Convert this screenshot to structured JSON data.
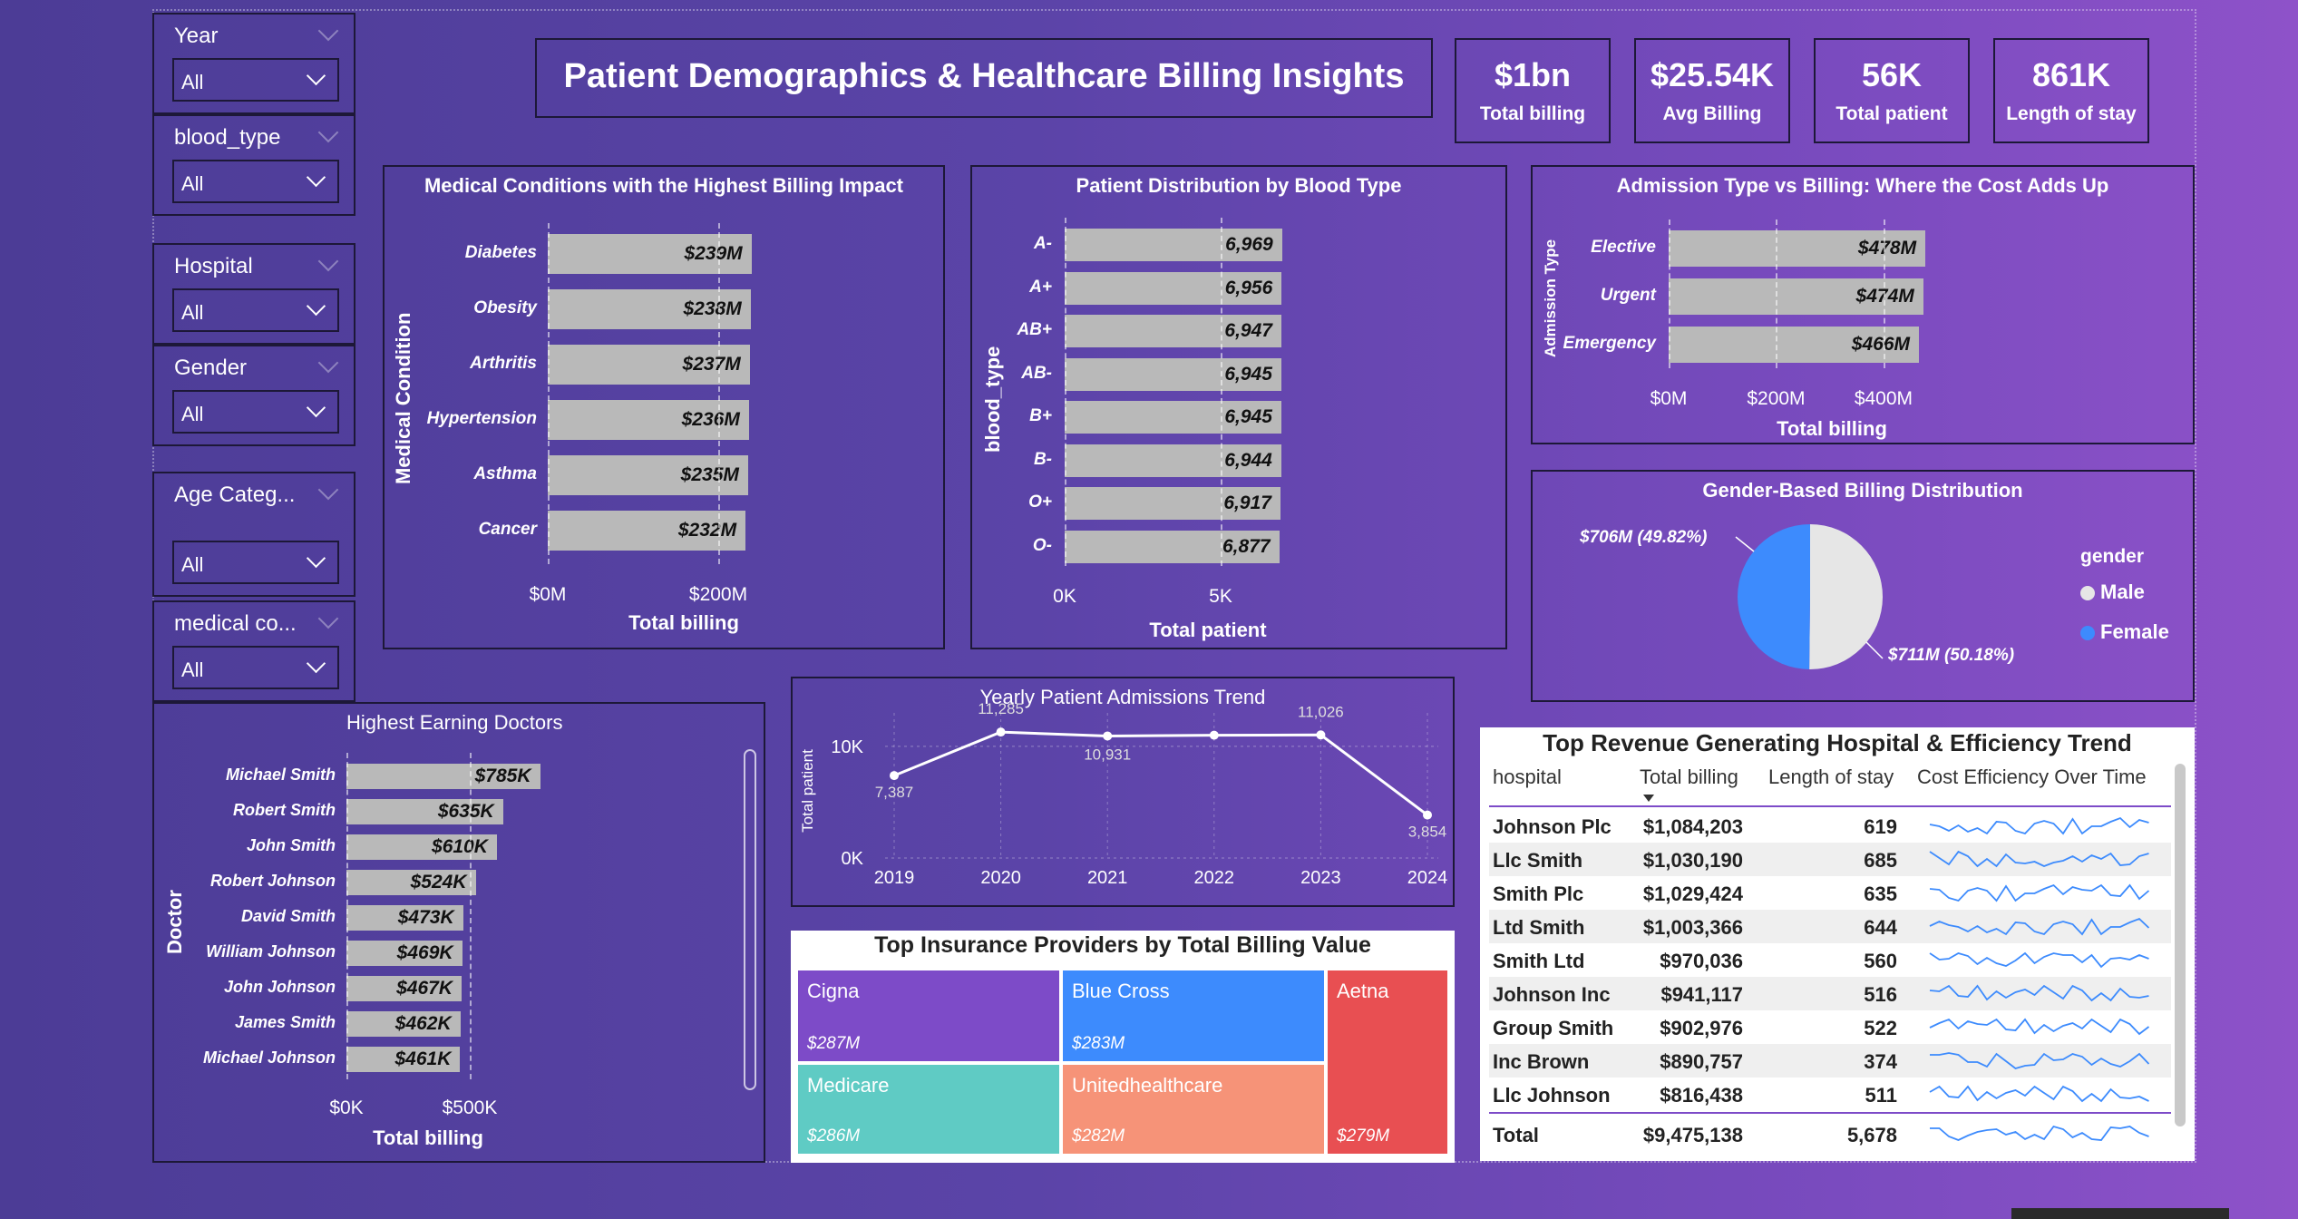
{
  "report_title": "Patient Demographics & Healthcare Billing Insights",
  "slicers": [
    {
      "label": "Year",
      "value": "All"
    },
    {
      "label": "blood_type",
      "value": "All"
    },
    {
      "label": "Hospital",
      "value": "All"
    },
    {
      "label": "Gender",
      "value": "All"
    },
    {
      "label": "Age Categ...",
      "value": "All"
    },
    {
      "label": "medical co...",
      "value": "All"
    }
  ],
  "kpis": [
    {
      "value": "$1bn",
      "label": "Total billing"
    },
    {
      "value": "$25.54K",
      "label": "Avg Billing"
    },
    {
      "value": "56K",
      "label": "Total patient"
    },
    {
      "value": "861K",
      "label": "Length of stay"
    }
  ],
  "colors": {
    "bar": "#b9b9b9",
    "female": "#3d8bfd",
    "male": "#e6e6e6",
    "cigna": "#7d4bc8",
    "blue_cross": "#3d8bfd",
    "aetna": "#e84f52",
    "medicare": "#5fcbc4",
    "unitedhealthcare": "#f69378"
  },
  "chart_data": [
    {
      "type": "bar",
      "orientation": "horizontal",
      "title": "Medical Conditions with the Highest Billing Impact",
      "ylabel": "Medical Condition",
      "xlabel": "Total billing",
      "categories": [
        "Diabetes",
        "Obesity",
        "Arthritis",
        "Hypertension",
        "Asthma",
        "Cancer"
      ],
      "values": [
        239,
        238,
        237,
        236,
        235,
        232
      ],
      "value_labels": [
        "$239M",
        "$238M",
        "$237M",
        "$236M",
        "$235M",
        "$232M"
      ],
      "xticks": [
        "$0M",
        "$200M"
      ],
      "xlim": [
        0,
        250
      ]
    },
    {
      "type": "bar",
      "orientation": "horizontal",
      "title": "Patient Distribution by Blood Type",
      "ylabel": "blood_type",
      "xlabel": "Total patient",
      "categories": [
        "A-",
        "A+",
        "AB+",
        "AB-",
        "B+",
        "B-",
        "O+",
        "O-"
      ],
      "values": [
        6969,
        6956,
        6947,
        6945,
        6945,
        6944,
        6917,
        6877
      ],
      "value_labels": [
        "6,969",
        "6,956",
        "6,947",
        "6,945",
        "6,945",
        "6,944",
        "6,917",
        "6,877"
      ],
      "xticks": [
        "0K",
        "5K"
      ],
      "xlim": [
        0,
        7500
      ]
    },
    {
      "type": "bar",
      "orientation": "horizontal",
      "title": "Admission Type vs Billing: Where the Cost Adds Up",
      "ylabel": "Admission Type",
      "xlabel": "Total billing",
      "categories": [
        "Elective",
        "Urgent",
        "Emergency"
      ],
      "values": [
        478,
        474,
        466
      ],
      "value_labels": [
        "$478M",
        "$474M",
        "$466M"
      ],
      "xticks": [
        "$0M",
        "$200M",
        "$400M"
      ],
      "xlim": [
        0,
        520
      ]
    },
    {
      "type": "pie",
      "title": "Gender-Based Billing Distribution",
      "legend_title": "gender",
      "categories": [
        "Male",
        "Female"
      ],
      "values": [
        711,
        706
      ],
      "value_labels": [
        "$711M (50.18%)",
        "$706M (49.82%)"
      ]
    },
    {
      "type": "bar",
      "orientation": "horizontal",
      "title": "Highest Earning Doctors",
      "ylabel": "Doctor",
      "xlabel": "Total billing",
      "categories": [
        "Michael Smith",
        "Robert Smith",
        "John Smith",
        "Robert Johnson",
        "David Smith",
        "William Johnson",
        "John Johnson",
        "James Smith",
        "Michael Johnson"
      ],
      "values": [
        785,
        635,
        610,
        524,
        473,
        469,
        467,
        462,
        461
      ],
      "value_labels": [
        "$785K",
        "$635K",
        "$610K",
        "$524K",
        "$473K",
        "$469K",
        "$467K",
        "$462K",
        "$461K"
      ],
      "xticks": [
        "$0K",
        "$500K"
      ],
      "xlim": [
        0,
        1000
      ]
    },
    {
      "type": "line",
      "title": "Yearly Patient Admissions Trend",
      "ylabel": "Total patient",
      "x": [
        "2019",
        "2020",
        "2021",
        "2022",
        "2023",
        "2024"
      ],
      "values": [
        7387,
        11285,
        10931,
        11000,
        11026,
        3854
      ],
      "value_labels": [
        "7,387",
        "11,285",
        "10,931",
        "",
        "11,026",
        "3,854"
      ],
      "yticks": [
        "0K",
        "10K"
      ],
      "ylim": [
        0,
        13000
      ]
    },
    {
      "type": "treemap",
      "title": "Top Insurance Providers by Total Billing Value",
      "categories": [
        "Cigna",
        "Blue Cross",
        "Aetna",
        "Medicare",
        "Unitedhealthcare"
      ],
      "values": [
        287,
        283,
        279,
        286,
        282
      ],
      "value_labels": [
        "$287M",
        "$283M",
        "$279M",
        "$286M",
        "$282M"
      ]
    },
    {
      "type": "table",
      "title": "Top Revenue Generating Hospital & Efficiency Trend",
      "columns": [
        "hospital",
        "Total billing",
        "Length of stay",
        "Cost Efficiency Over Time"
      ],
      "rows": [
        {
          "hospital": "Johnson Plc",
          "billing": "$1,084,203",
          "stay": "619"
        },
        {
          "hospital": "Llc Smith",
          "billing": "$1,030,190",
          "stay": "685"
        },
        {
          "hospital": "Smith Plc",
          "billing": "$1,029,424",
          "stay": "635"
        },
        {
          "hospital": "Ltd Smith",
          "billing": "$1,003,366",
          "stay": "644"
        },
        {
          "hospital": "Smith Ltd",
          "billing": "$970,036",
          "stay": "560"
        },
        {
          "hospital": "Johnson Inc",
          "billing": "$941,117",
          "stay": "516"
        },
        {
          "hospital": "Group Smith",
          "billing": "$902,976",
          "stay": "522"
        },
        {
          "hospital": "Inc Brown",
          "billing": "$890,757",
          "stay": "374"
        },
        {
          "hospital": "Llc Johnson",
          "billing": "$816,438",
          "stay": "511"
        }
      ],
      "total": {
        "label": "Total",
        "billing": "$9,475,138",
        "stay": "5,678"
      }
    }
  ]
}
